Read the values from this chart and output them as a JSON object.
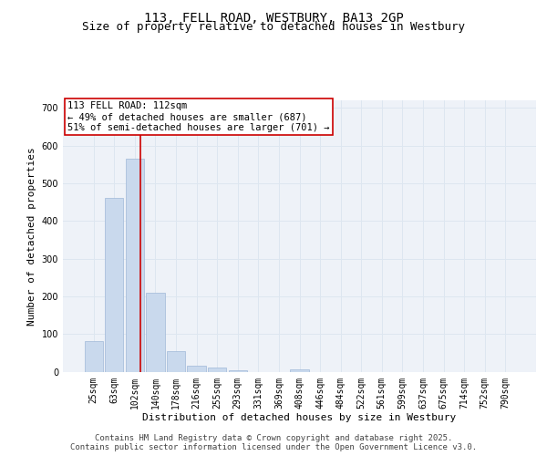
{
  "title1": "113, FELL ROAD, WESTBURY, BA13 2GP",
  "title2": "Size of property relative to detached houses in Westbury",
  "xlabel": "Distribution of detached houses by size in Westbury",
  "ylabel": "Number of detached properties",
  "categories": [
    "25sqm",
    "63sqm",
    "102sqm",
    "140sqm",
    "178sqm",
    "216sqm",
    "255sqm",
    "293sqm",
    "331sqm",
    "369sqm",
    "408sqm",
    "446sqm",
    "484sqm",
    "522sqm",
    "561sqm",
    "599sqm",
    "637sqm",
    "675sqm",
    "714sqm",
    "752sqm",
    "790sqm"
  ],
  "values": [
    80,
    460,
    565,
    210,
    55,
    15,
    12,
    4,
    0,
    0,
    6,
    0,
    0,
    0,
    0,
    0,
    0,
    0,
    0,
    0,
    0
  ],
  "bar_color": "#c9d9ed",
  "bar_edge_color": "#a0b8d8",
  "grid_color": "#dde6f0",
  "background_color": "#eef2f8",
  "annotation_line1": "113 FELL ROAD: 112sqm",
  "annotation_line2": "← 49% of detached houses are smaller (687)",
  "annotation_line3": "51% of semi-detached houses are larger (701) →",
  "annotation_box_color": "#ffffff",
  "annotation_box_edge_color": "#cc0000",
  "vline_color": "#cc0000",
  "ylim": [
    0,
    720
  ],
  "yticks": [
    0,
    100,
    200,
    300,
    400,
    500,
    600,
    700
  ],
  "footer_text": "Contains HM Land Registry data © Crown copyright and database right 2025.\nContains public sector information licensed under the Open Government Licence v3.0.",
  "title1_fontsize": 10,
  "title2_fontsize": 9,
  "xlabel_fontsize": 8,
  "ylabel_fontsize": 8,
  "tick_fontsize": 7,
  "annotation_fontsize": 7.5,
  "footer_fontsize": 6.5
}
